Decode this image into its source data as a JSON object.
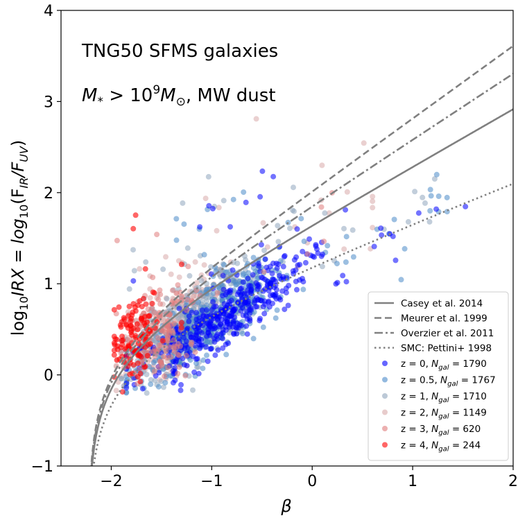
{
  "chart_data": {
    "type": "scatter",
    "title": "",
    "xlabel": "β",
    "ylabel": "log10IRX = log10(FIR/FUV)",
    "ylabel_parts": [
      "log",
      "10",
      "IRX = log",
      "10",
      "(F",
      "IR",
      "/F",
      "UV",
      ")"
    ],
    "xlim": [
      -2.5,
      2.0
    ],
    "ylim": [
      -1,
      4
    ],
    "xticks": [
      -2,
      -1,
      0,
      1,
      2
    ],
    "xtick_labels": [
      "−2",
      "−1",
      "0",
      "1",
      "2"
    ],
    "yticks": [
      -1,
      0,
      1,
      2,
      3,
      4
    ],
    "ytick_labels": [
      "−1",
      "0",
      "1",
      "2",
      "3",
      "4"
    ],
    "grid": false,
    "annotations": {
      "line1": "TNG50 SFMS galaxies",
      "line2_mass": "M",
      "line2_sub": "*",
      "line2_gt": " > 10",
      "line2_exp": "9",
      "line2_msun": "M",
      "line2_sun": "⊙",
      "line2_dust": ", MW dust"
    },
    "relations": [
      {
        "name": "Casey et al. 2014",
        "style": "solid",
        "color": "#808080",
        "A": 3.06,
        "B": 1.58,
        "beta0": -2.23
      },
      {
        "name": "Meurer et al. 1999",
        "style": "dashed",
        "color": "#808080",
        "A": 4.43,
        "B": 1.99,
        "beta0": -2.23
      },
      {
        "name": "Overzier et al. 2011",
        "style": "dashdot",
        "color": "#808080",
        "A": 4.01,
        "B": 1.81,
        "beta0": -2.23
      },
      {
        "name": "SMC: Pettini+ 1998",
        "style": "dotted",
        "color": "#808080",
        "A": 2.45,
        "B": 1.1,
        "beta0": -2.23
      }
    ],
    "series": [
      {
        "name": "z = 0",
        "n_label": "N",
        "n_sub": "gal",
        "n_value": " = 1790",
        "color": "#0000ff",
        "count": 1790
      },
      {
        "name": "z = 0.5",
        "n_label": "N",
        "n_sub": "gal",
        "n_value": " = 1767",
        "color": "#4b8bc9",
        "count": 1767
      },
      {
        "name": "z = 1",
        "n_label": "N",
        "n_sub": "gal",
        "n_value": " = 1710",
        "color": "#8fa5bd",
        "count": 1710
      },
      {
        "name": "z = 2",
        "n_label": "N",
        "n_sub": "gal",
        "n_value": " = 1149",
        "color": "#d9aaaa",
        "count": 1149
      },
      {
        "name": "z = 3",
        "n_label": "N",
        "n_sub": "gal",
        "n_value": " = 620",
        "color": "#e07c7c",
        "count": 620
      },
      {
        "name": "z = 4",
        "n_label": "N",
        "n_sub": "gal",
        "n_value": " = 244",
        "color": "#ff0000",
        "count": 244
      }
    ],
    "legend_position": "lower-right"
  }
}
